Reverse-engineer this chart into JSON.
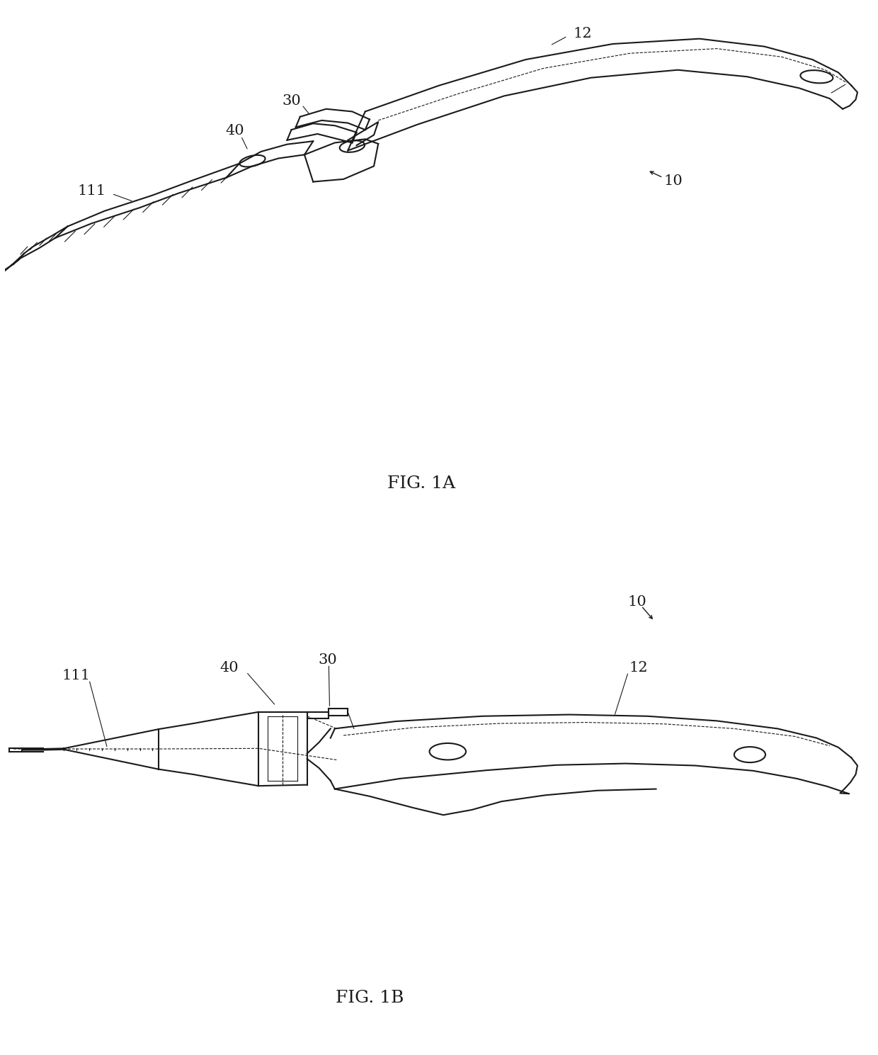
{
  "background_color": "#ffffff",
  "line_color": "#1a1a1a",
  "line_width": 1.5,
  "fig_width": 12.4,
  "fig_height": 14.89,
  "fig1a_label": "FIG. 1A",
  "fig1b_label": "FIG. 1B",
  "label_fontsize": 18,
  "ref_fontsize": 15
}
